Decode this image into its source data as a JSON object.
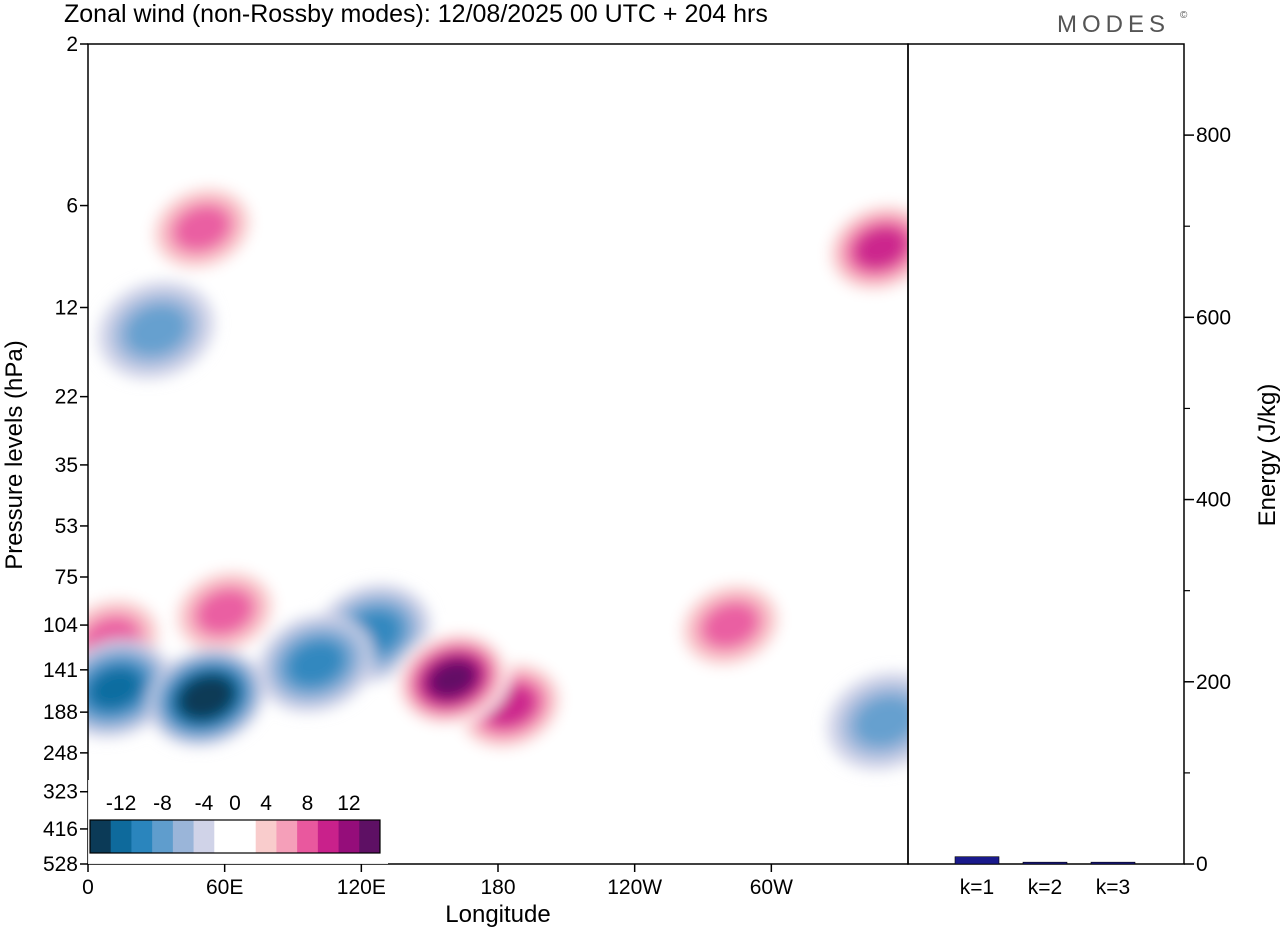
{
  "header": {
    "title": "Zonal wind (non-Rossby modes):  12/08/2025  00 UTC  + 204 hrs",
    "brand": "MODES",
    "brand_mark": "©"
  },
  "chart_data": [
    {
      "type": "heatmap",
      "title": "Zonal wind (non-Rossby modes):  12/08/2025  00 UTC  + 204 hrs",
      "xlabel": "Longitude",
      "ylabel": "Pressure levels (hPa)",
      "x_ticks": [
        "0",
        "60E",
        "120E",
        "180",
        "120W",
        "60W"
      ],
      "x_tick_degrees": [
        0,
        60,
        120,
        180,
        240,
        300
      ],
      "xlim": [
        0,
        360
      ],
      "y_ticks": [
        "2",
        "6",
        "12",
        "22",
        "35",
        "53",
        "75",
        "104",
        "141",
        "188",
        "248",
        "323",
        "416",
        "528"
      ],
      "y_scale": "log",
      "colorbar": {
        "labels": [
          "-12",
          "-8",
          "-4",
          "0",
          "4",
          "8",
          "12"
        ],
        "label_values": [
          -12,
          -8,
          -4,
          0,
          4,
          8,
          12
        ],
        "levels": [
          -14,
          -12,
          -10,
          -8,
          -6,
          -4,
          -2,
          2,
          4,
          6,
          8,
          10,
          12,
          14
        ],
        "colors": [
          "#0b3a57",
          "#0e6a9c",
          "#2a85bd",
          "#5f9dcd",
          "#9ab5d9",
          "#d0d3e8",
          "#ffffff",
          "#ffffff",
          "#f9cccc",
          "#f59fb9",
          "#e9589e",
          "#c9218b",
          "#950d7a",
          "#5e1064"
        ],
        "placement": "bottom-left"
      },
      "features": [
        {
          "name": "westward jet core",
          "lon": 52,
          "pressure_hPa": 170,
          "value": -14
        },
        {
          "name": "easterly band",
          "lon": 12,
          "pressure_hPa": 160,
          "value": -9
        },
        {
          "name": "easterly band",
          "lon": 100,
          "pressure_hPa": 135,
          "value": -8
        },
        {
          "name": "easterly band",
          "lon": 125,
          "pressure_hPa": 110,
          "value": -7
        },
        {
          "name": "eastward jet core",
          "lon": 160,
          "pressure_hPa": 150,
          "value": 13
        },
        {
          "name": "eastward jet",
          "lon": 185,
          "pressure_hPa": 180,
          "value": 10
        },
        {
          "name": "westerly patch",
          "lon": 10,
          "pressure_hPa": 115,
          "value": 7
        },
        {
          "name": "westerly patch",
          "lon": 60,
          "pressure_hPa": 95,
          "value": 7
        },
        {
          "name": "westerly patch",
          "lon": 282,
          "pressure_hPa": 104,
          "value": 8
        },
        {
          "name": "westerly patch",
          "lon": 50,
          "pressure_hPa": 7,
          "value": 8
        },
        {
          "name": "westerly patch",
          "lon": 348,
          "pressure_hPa": 8,
          "value": 9
        },
        {
          "name": "easterly patch",
          "lon": 30,
          "pressure_hPa": 14,
          "value": -6
        },
        {
          "name": "easterly patch",
          "lon": 350,
          "pressure_hPa": 200,
          "value": -6
        }
      ]
    },
    {
      "type": "bar",
      "categories": [
        "k=1",
        "k=2",
        "k=3"
      ],
      "values": [
        8,
        2,
        2
      ],
      "ylabel": "Energy (J/kg)",
      "ylim": [
        0,
        900
      ],
      "y_ticks": [
        "0",
        "200",
        "400",
        "600",
        "800"
      ],
      "bar_color": "#1a1a8c",
      "axis_side": "right"
    }
  ]
}
